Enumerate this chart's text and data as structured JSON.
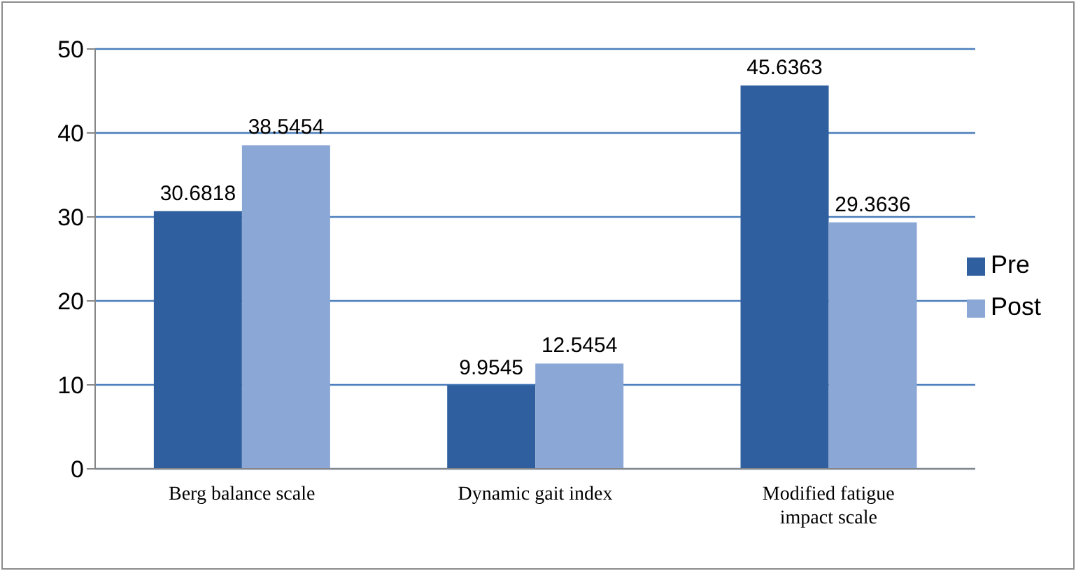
{
  "chart_data": {
    "type": "bar",
    "categories": [
      "Berg balance scale",
      "Dynamic gait index",
      "Modified fatigue impact scale"
    ],
    "series": [
      {
        "name": "Pre",
        "color": "#2f5f9e",
        "values": [
          30.6818,
          9.9545,
          45.6363
        ]
      },
      {
        "name": "Post",
        "color": "#8ba7d5",
        "values": [
          38.5454,
          12.5454,
          29.3636
        ]
      }
    ],
    "ylim": [
      0,
      50
    ],
    "yticks": [
      0,
      10,
      20,
      30,
      40,
      50
    ],
    "grid": "y",
    "legend": "right",
    "data_labels": true
  }
}
